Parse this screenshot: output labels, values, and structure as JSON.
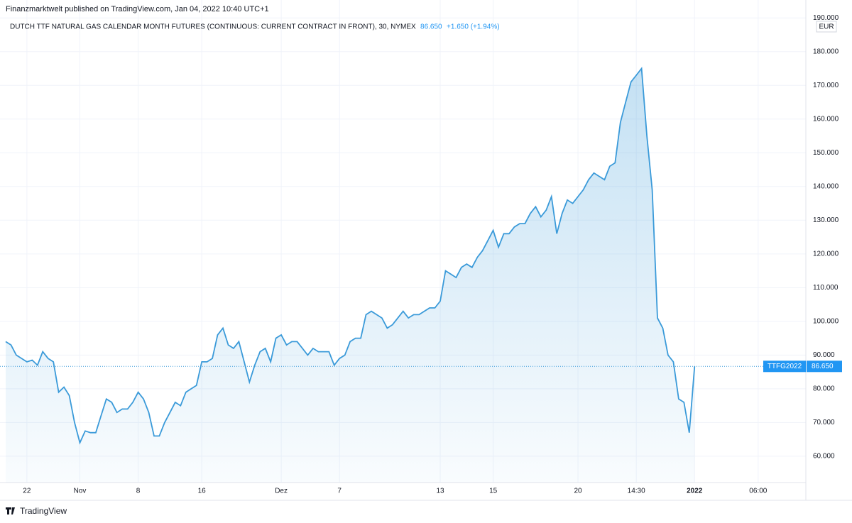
{
  "header": {
    "publisher": "Finanzmarktwelt published on TradingView.com, Jan 04, 2022 10:40 UTC+1",
    "symbol": "DUTCH TTF NATURAL GAS CALENDAR MONTH FUTURES (CONTINUOUS: CURRENT CONTRACT IN FRONT), 30, NYMEX",
    "price": "86.650",
    "change": "+1.650 (+1.94%)"
  },
  "footer": {
    "brand": "TradingView"
  },
  "chart_data": {
    "type": "area",
    "color": "#3a9ad9",
    "currency": "EUR",
    "ticker": "TTFG2022",
    "last_value_label": "86.650",
    "grid": true,
    "categories": [
      null,
      null,
      null,
      null,
      "22",
      null,
      null,
      null,
      null,
      null,
      null,
      null,
      null,
      null,
      "Nov",
      null,
      null,
      null,
      null,
      null,
      null,
      null,
      null,
      null,
      null,
      "8",
      null,
      null,
      null,
      null,
      null,
      null,
      null,
      null,
      null,
      null,
      null,
      "16",
      null,
      null,
      null,
      null,
      null,
      null,
      null,
      null,
      null,
      null,
      null,
      null,
      null,
      null,
      "Dez",
      null,
      null,
      null,
      null,
      null,
      null,
      null,
      null,
      null,
      null,
      "7",
      null,
      null,
      null,
      null,
      null,
      null,
      null,
      null,
      null,
      null,
      null,
      null,
      null,
      null,
      null,
      null,
      null,
      null,
      "13",
      null,
      null,
      null,
      null,
      null,
      null,
      null,
      null,
      null,
      "15",
      null,
      null,
      null,
      null,
      null,
      null,
      null,
      null,
      null,
      null,
      null,
      null,
      null,
      null,
      null,
      "20",
      null,
      null,
      null,
      null,
      null,
      null,
      null,
      null,
      null,
      null,
      "14:30",
      null,
      null,
      null,
      null,
      null,
      null,
      null,
      null,
      null,
      null,
      "2022",
      null,
      null,
      null,
      null,
      null,
      null,
      null,
      null,
      null,
      null,
      null,
      "06:00",
      null,
      null,
      null,
      null,
      null,
      null,
      null,
      null,
      null
    ],
    "values": [
      94,
      93,
      90,
      89,
      88,
      88.5,
      87,
      91,
      89,
      88,
      79,
      80.5,
      78,
      70,
      64,
      67.5,
      67,
      67,
      72,
      77,
      76,
      73,
      74,
      74,
      76,
      79,
      77,
      73,
      66,
      66,
      70,
      73,
      76,
      75,
      79,
      80,
      81,
      88,
      88,
      89,
      96,
      98,
      93,
      92,
      94,
      88,
      82,
      87,
      91,
      92,
      88,
      95,
      96,
      93,
      94,
      94,
      92,
      90,
      92,
      91,
      91,
      91,
      87,
      89,
      90,
      94,
      95,
      95,
      102,
      103,
      102,
      101,
      98,
      99,
      101,
      103,
      101,
      102,
      102,
      103,
      104,
      104,
      106,
      115,
      114,
      113,
      116,
      117,
      116,
      119,
      121,
      124,
      127,
      122,
      126,
      126,
      128,
      129,
      129,
      132,
      134,
      131,
      133,
      137,
      126,
      132,
      136,
      135,
      137,
      139,
      142,
      144,
      143,
      142,
      146,
      147,
      159,
      165,
      171,
      173,
      175,
      155,
      139,
      101,
      98,
      90,
      88,
      77,
      76,
      67,
      86.65,
      null,
      null,
      null,
      null,
      null,
      null,
      null,
      null,
      null,
      null,
      null,
      null,
      null,
      null,
      null,
      null,
      null,
      null,
      null,
      null,
      null
    ],
    "ylim": [
      52.2,
      193.2
    ],
    "yticks": [
      {
        "value": 60,
        "label": "60.000"
      },
      {
        "value": 70,
        "label": "70.000"
      },
      {
        "value": 80,
        "label": "80.000"
      },
      {
        "value": 90,
        "label": "90.000"
      },
      {
        "value": 100,
        "label": "100.000"
      },
      {
        "value": 110,
        "label": "110.000"
      },
      {
        "value": 120,
        "label": "120.000"
      },
      {
        "value": 130,
        "label": "130.000"
      },
      {
        "value": 140,
        "label": "140.000"
      },
      {
        "value": 150,
        "label": "150.000"
      },
      {
        "value": 160,
        "label": "160.000"
      },
      {
        "value": 170,
        "label": "170.000"
      },
      {
        "value": 180,
        "label": "180.000"
      },
      {
        "value": 190,
        "label": "190.000"
      }
    ]
  }
}
